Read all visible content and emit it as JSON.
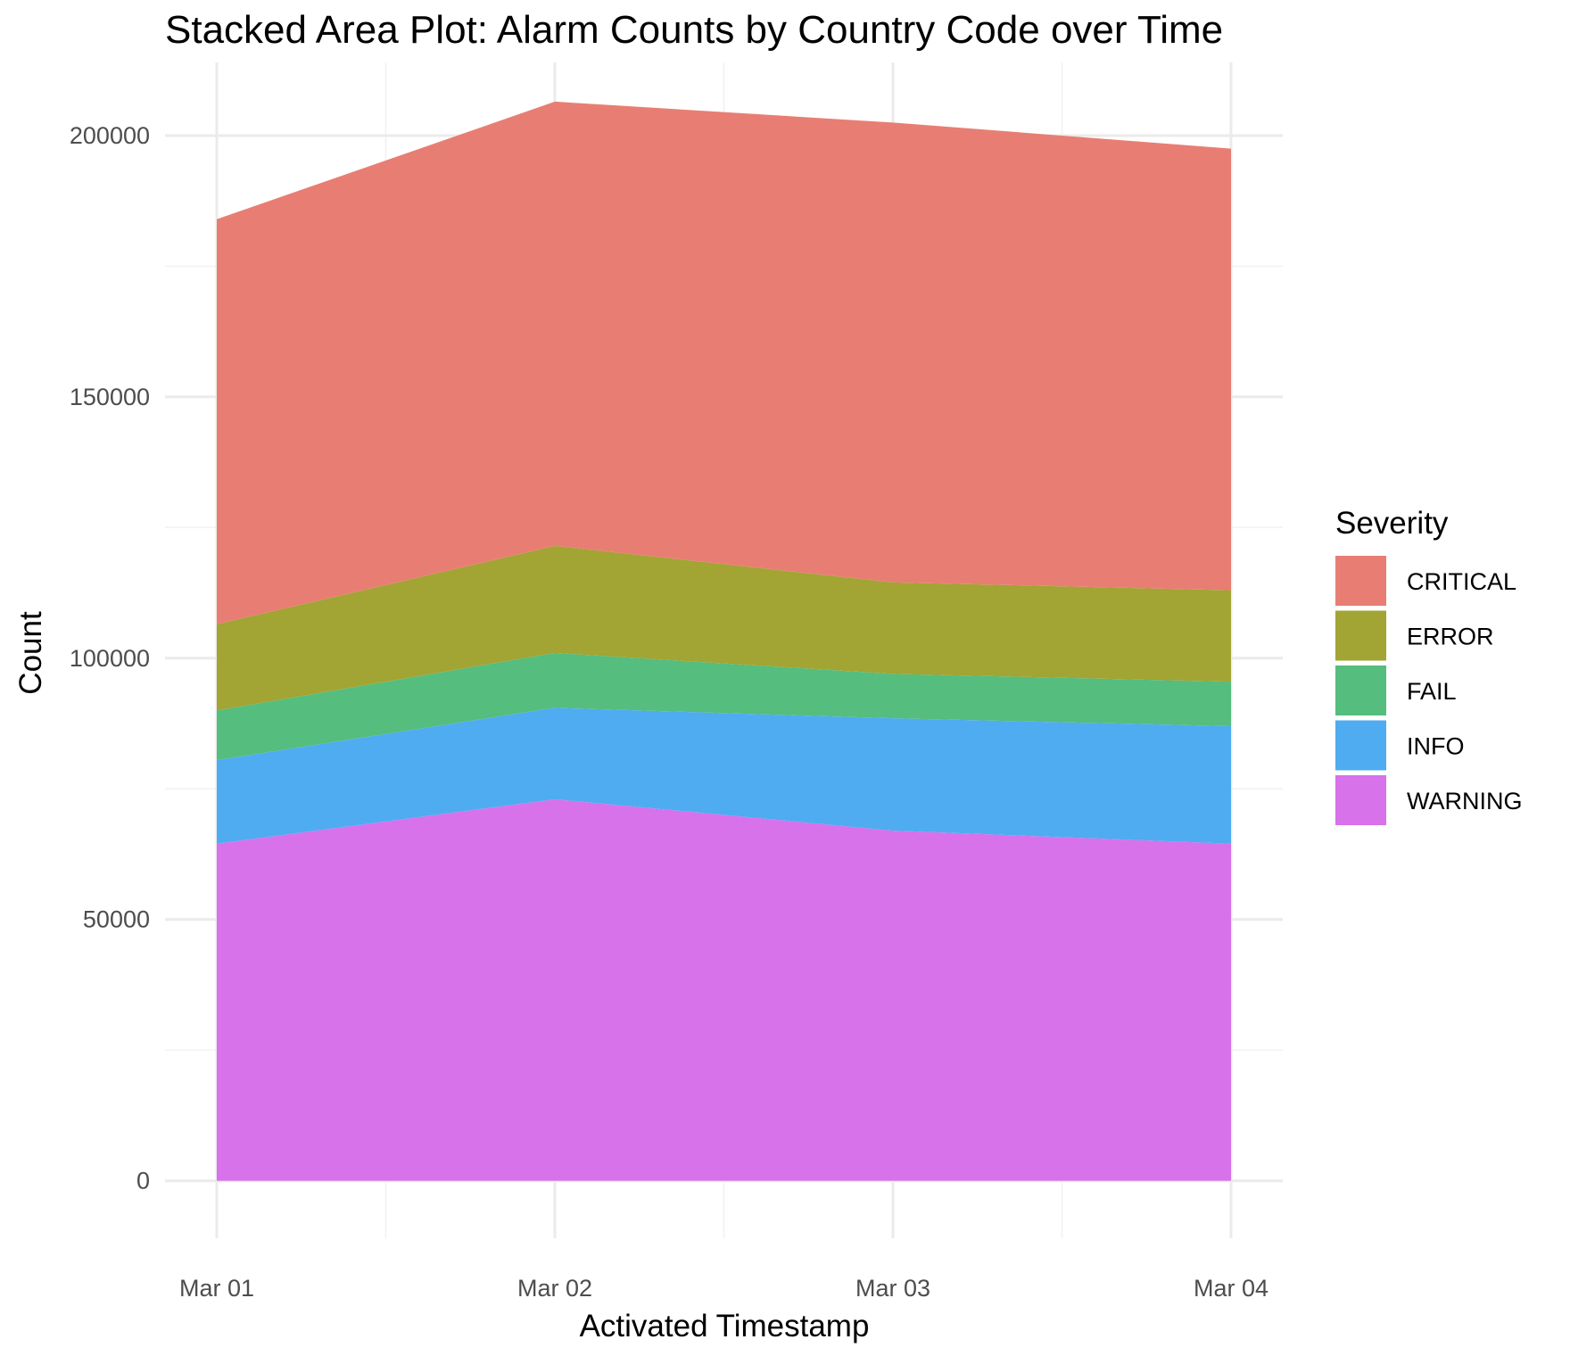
{
  "chart_data": {
    "type": "area",
    "stacked": true,
    "title": "Stacked Area Plot: Alarm Counts by Country Code over Time",
    "xlabel": "Activated Timestamp",
    "ylabel": "Count",
    "x": [
      "Mar 01",
      "Mar 02",
      "Mar 03",
      "Mar 04"
    ],
    "xlim": [
      "Mar 01",
      "Mar 04"
    ],
    "ylim": [
      -11000,
      214000
    ],
    "yticks": [
      0,
      50000,
      100000,
      150000,
      200000
    ],
    "ytick_labels": [
      "0",
      "50000",
      "100000",
      "150000",
      "200000"
    ],
    "grid": true,
    "legend": {
      "title": "Severity",
      "placement": "right"
    },
    "series": [
      {
        "name": "WARNING",
        "color": "#D772EA",
        "values": [
          64500,
          73000,
          67000,
          64500
        ]
      },
      {
        "name": "INFO",
        "color": "#4FACF1",
        "values": [
          16000,
          17500,
          21500,
          22500
        ]
      },
      {
        "name": "FAIL",
        "color": "#55BD7E",
        "values": [
          9500,
          10500,
          8500,
          8500
        ]
      },
      {
        "name": "ERROR",
        "color": "#A2A434",
        "values": [
          16500,
          20500,
          17500,
          17500
        ]
      },
      {
        "name": "CRITICAL",
        "color": "#E87E73",
        "values": [
          77500,
          85000,
          88000,
          84500
        ]
      }
    ],
    "legend_order": [
      "CRITICAL",
      "ERROR",
      "FAIL",
      "INFO",
      "WARNING"
    ]
  }
}
